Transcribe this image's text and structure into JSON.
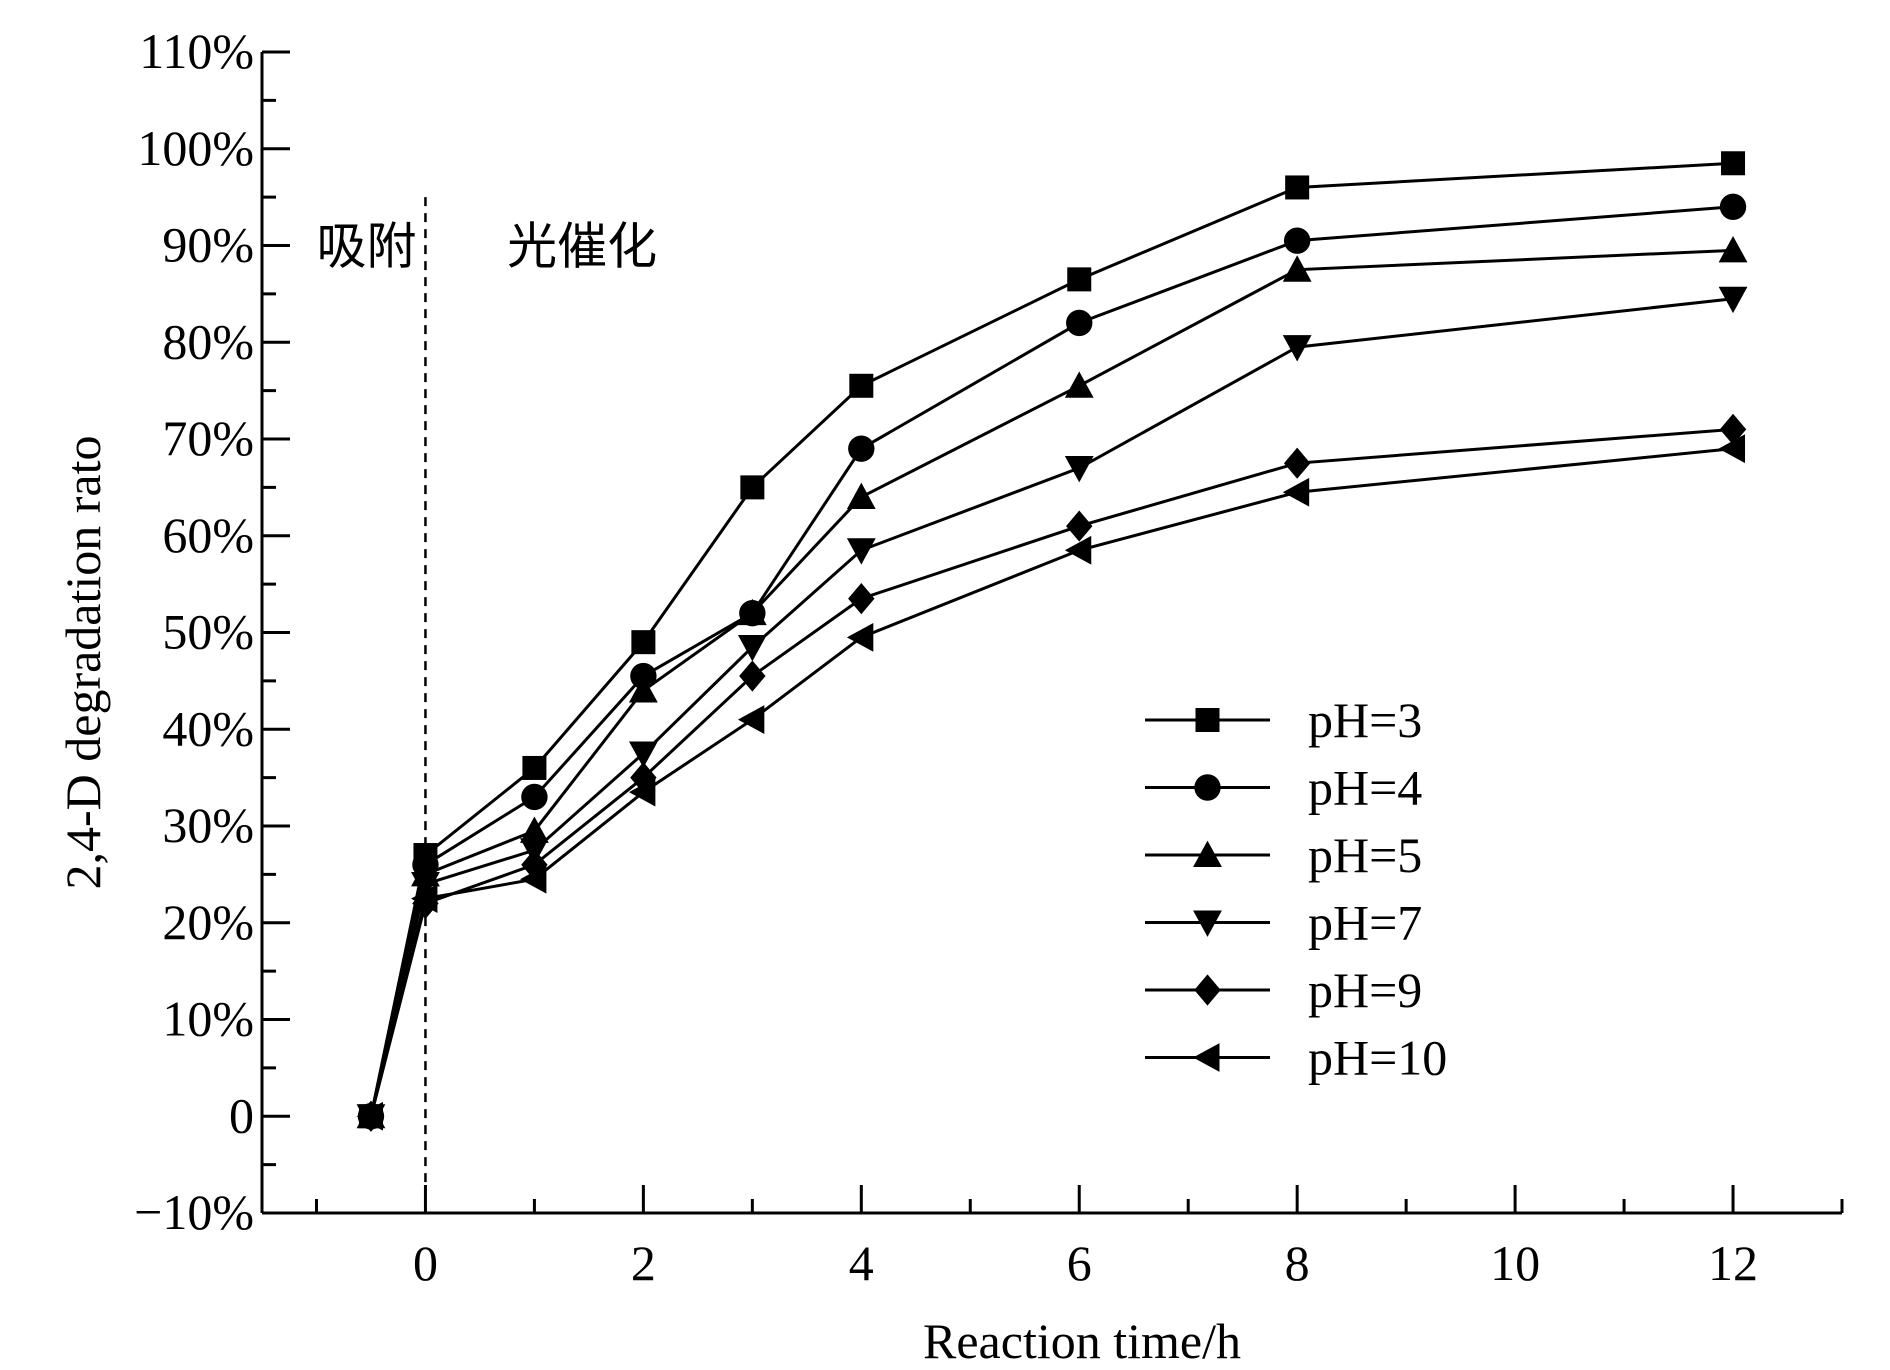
{
  "chart_data": {
    "type": "line",
    "xlabel": "Reaction time/h",
    "ylabel": "2,4-D degradation rato",
    "xlim": [
      -1.5,
      13
    ],
    "ylim": [
      -10,
      110
    ],
    "x_ticks": [
      0,
      2,
      4,
      6,
      8,
      10,
      12
    ],
    "x_tick_labels": [
      "0",
      "2",
      "4",
      "6",
      "8",
      "10",
      "12"
    ],
    "y_ticks": [
      -10,
      0,
      10,
      20,
      30,
      40,
      50,
      60,
      70,
      80,
      90,
      100,
      110
    ],
    "y_tick_labels": [
      "−10%",
      "0",
      "10%",
      "20%",
      "30%",
      "40%",
      "50%",
      "60%",
      "70%",
      "80%",
      "90%",
      "100%",
      "110%"
    ],
    "annotations": [
      {
        "text": "吸附",
        "x": -1.0,
        "y": 90
      },
      {
        "text": "光催化",
        "x": 0.75,
        "y": 90
      }
    ],
    "divider_x": 0,
    "legend_position": "center-right",
    "x": [
      -0.5,
      0,
      1,
      2,
      3,
      4,
      6,
      8,
      12
    ],
    "series": [
      {
        "name": "pH=3",
        "marker": "square",
        "values": [
          0,
          27,
          36,
          49,
          65,
          75.5,
          86.5,
          96,
          98.5
        ]
      },
      {
        "name": "pH=4",
        "marker": "circle",
        "values": [
          0,
          26,
          33,
          45.5,
          52,
          69,
          82,
          90.5,
          94
        ]
      },
      {
        "name": "pH=5",
        "marker": "triangle-up",
        "values": [
          0,
          25,
          29.5,
          44,
          52,
          64,
          75.5,
          87.5,
          89.5
        ]
      },
      {
        "name": "pH=7",
        "marker": "triangle-down",
        "values": [
          0,
          24,
          27.5,
          37.5,
          48.5,
          58.5,
          67,
          79.5,
          84.5
        ]
      },
      {
        "name": "pH=9",
        "marker": "diamond",
        "values": [
          0,
          22,
          26,
          35,
          45.5,
          53.5,
          61,
          67.5,
          71
        ]
      },
      {
        "name": "pH=10",
        "marker": "triangle-left",
        "values": [
          0,
          22.5,
          24.5,
          33.5,
          41,
          49.5,
          58.5,
          64.5,
          69
        ]
      }
    ]
  }
}
